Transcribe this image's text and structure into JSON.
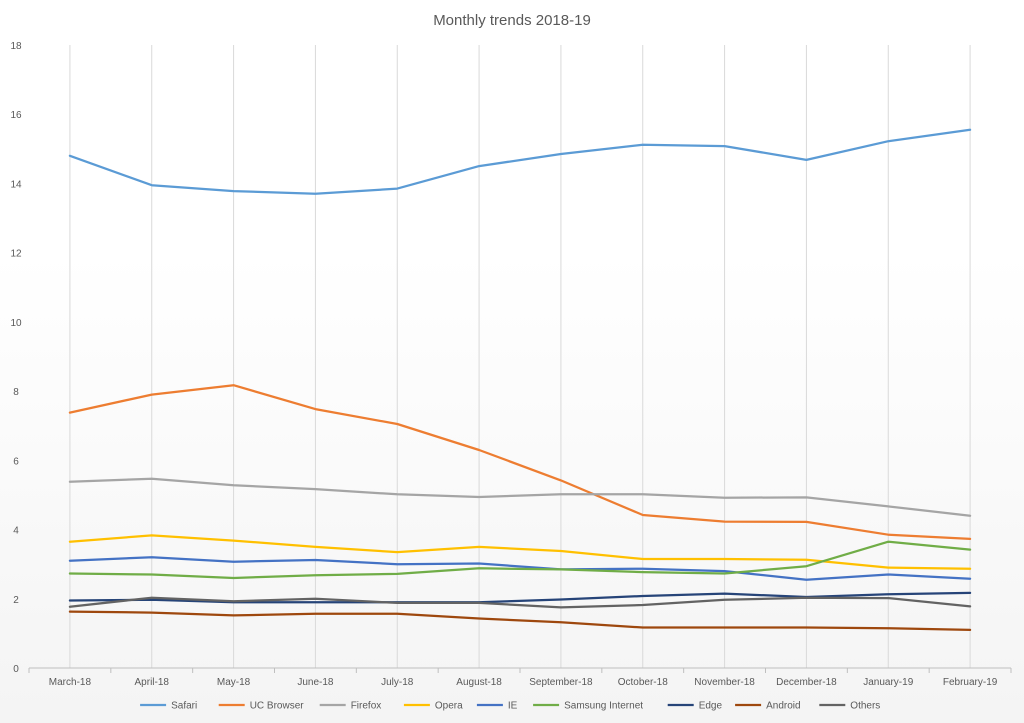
{
  "chart_data": {
    "type": "line",
    "title": "Monthly trends 2018-19",
    "xlabel": "",
    "ylabel": "",
    "ylim": [
      0,
      18
    ],
    "yticks": [
      0,
      2,
      4,
      6,
      8,
      10,
      12,
      14,
      16,
      18
    ],
    "grid": "vertical",
    "legend_position": "bottom",
    "categories": [
      "March-18",
      "April-18",
      "May-18",
      "June-18",
      "July-18",
      "August-18",
      "September-18",
      "October-18",
      "November-18",
      "December-18",
      "January-19",
      "February-19"
    ],
    "series": [
      {
        "name": "Safari",
        "color": "#5B9BD5",
        "values": [
          14.8,
          13.95,
          13.78,
          13.7,
          13.85,
          14.5,
          14.85,
          15.12,
          15.08,
          14.68,
          15.22,
          15.55
        ]
      },
      {
        "name": "UC Browser",
        "color": "#ED7D31",
        "values": [
          7.38,
          7.9,
          8.17,
          7.48,
          7.05,
          6.3,
          5.42,
          4.42,
          4.23,
          4.22,
          3.85,
          3.73
        ]
      },
      {
        "name": "Firefox",
        "color": "#A5A5A5",
        "values": [
          5.38,
          5.47,
          5.28,
          5.17,
          5.02,
          4.94,
          5.02,
          5.02,
          4.92,
          4.93,
          4.67,
          4.4
        ]
      },
      {
        "name": "Opera",
        "color": "#FFC000",
        "values": [
          3.65,
          3.83,
          3.68,
          3.5,
          3.35,
          3.5,
          3.38,
          3.15,
          3.15,
          3.13,
          2.9,
          2.87
        ]
      },
      {
        "name": "IE",
        "color": "#4472C4",
        "values": [
          3.1,
          3.2,
          3.07,
          3.12,
          3.0,
          3.02,
          2.85,
          2.87,
          2.8,
          2.55,
          2.7,
          2.58
        ]
      },
      {
        "name": "Samsung Internet",
        "color": "#70AD47",
        "values": [
          2.73,
          2.7,
          2.6,
          2.68,
          2.72,
          2.88,
          2.85,
          2.77,
          2.73,
          2.94,
          3.65,
          3.42
        ]
      },
      {
        "name": "Edge",
        "color": "#264478",
        "values": [
          1.95,
          1.97,
          1.9,
          1.9,
          1.9,
          1.9,
          1.98,
          2.08,
          2.15,
          2.05,
          2.13,
          2.17
        ]
      },
      {
        "name": "Android",
        "color": "#9E480E",
        "values": [
          1.63,
          1.6,
          1.52,
          1.57,
          1.57,
          1.43,
          1.32,
          1.17,
          1.17,
          1.17,
          1.15,
          1.1
        ]
      },
      {
        "name": "Others",
        "color": "#636363",
        "values": [
          1.77,
          2.03,
          1.93,
          2.0,
          1.88,
          1.88,
          1.75,
          1.82,
          1.97,
          2.03,
          2.02,
          1.78
        ]
      }
    ]
  }
}
